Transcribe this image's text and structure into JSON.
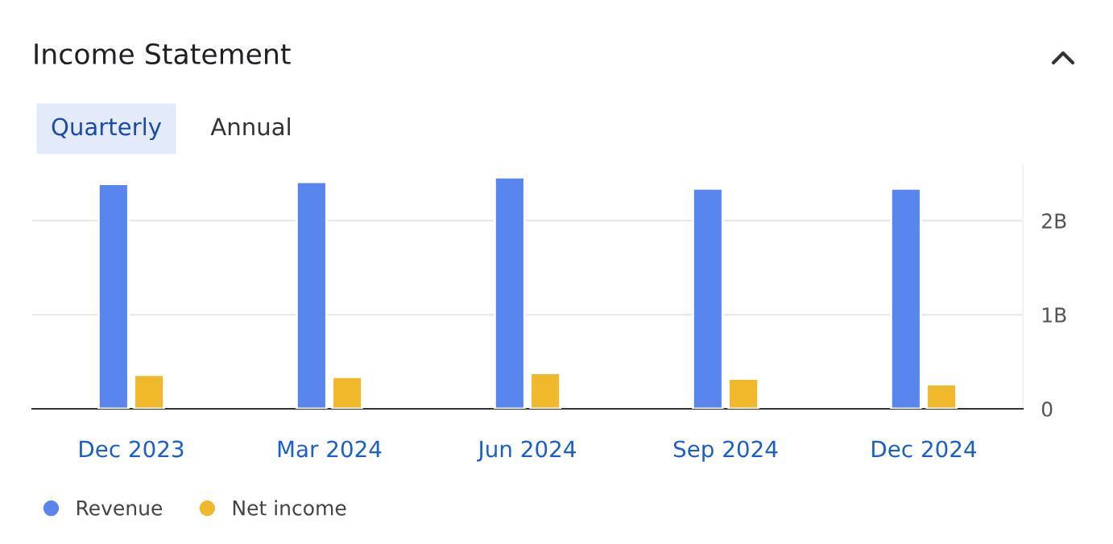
{
  "chart_data": {
    "type": "bar",
    "title": "Income Statement",
    "annotations": [
      "Quarterly",
      "Annual"
    ],
    "categories": [
      "Dec 2023",
      "Mar 2024",
      "Jun 2024",
      "Sep 2024",
      "Dec 2024"
    ],
    "series": [
      {
        "name": "Revenue",
        "color": "#5886ee",
        "values": [
          2.39,
          2.41,
          2.46,
          2.34,
          2.34
        ]
      },
      {
        "name": "Net income",
        "color": "#f0b92c",
        "values": [
          0.36,
          0.34,
          0.38,
          0.32,
          0.26
        ]
      }
    ],
    "ylim": [
      0,
      2.6
    ],
    "yticks": [
      0,
      {
        "value": 1,
        "label": "1B"
      },
      {
        "value": 2,
        "label": "2B"
      }
    ],
    "grid": "y",
    "legend": "bottom left",
    "marker": "circle"
  }
}
